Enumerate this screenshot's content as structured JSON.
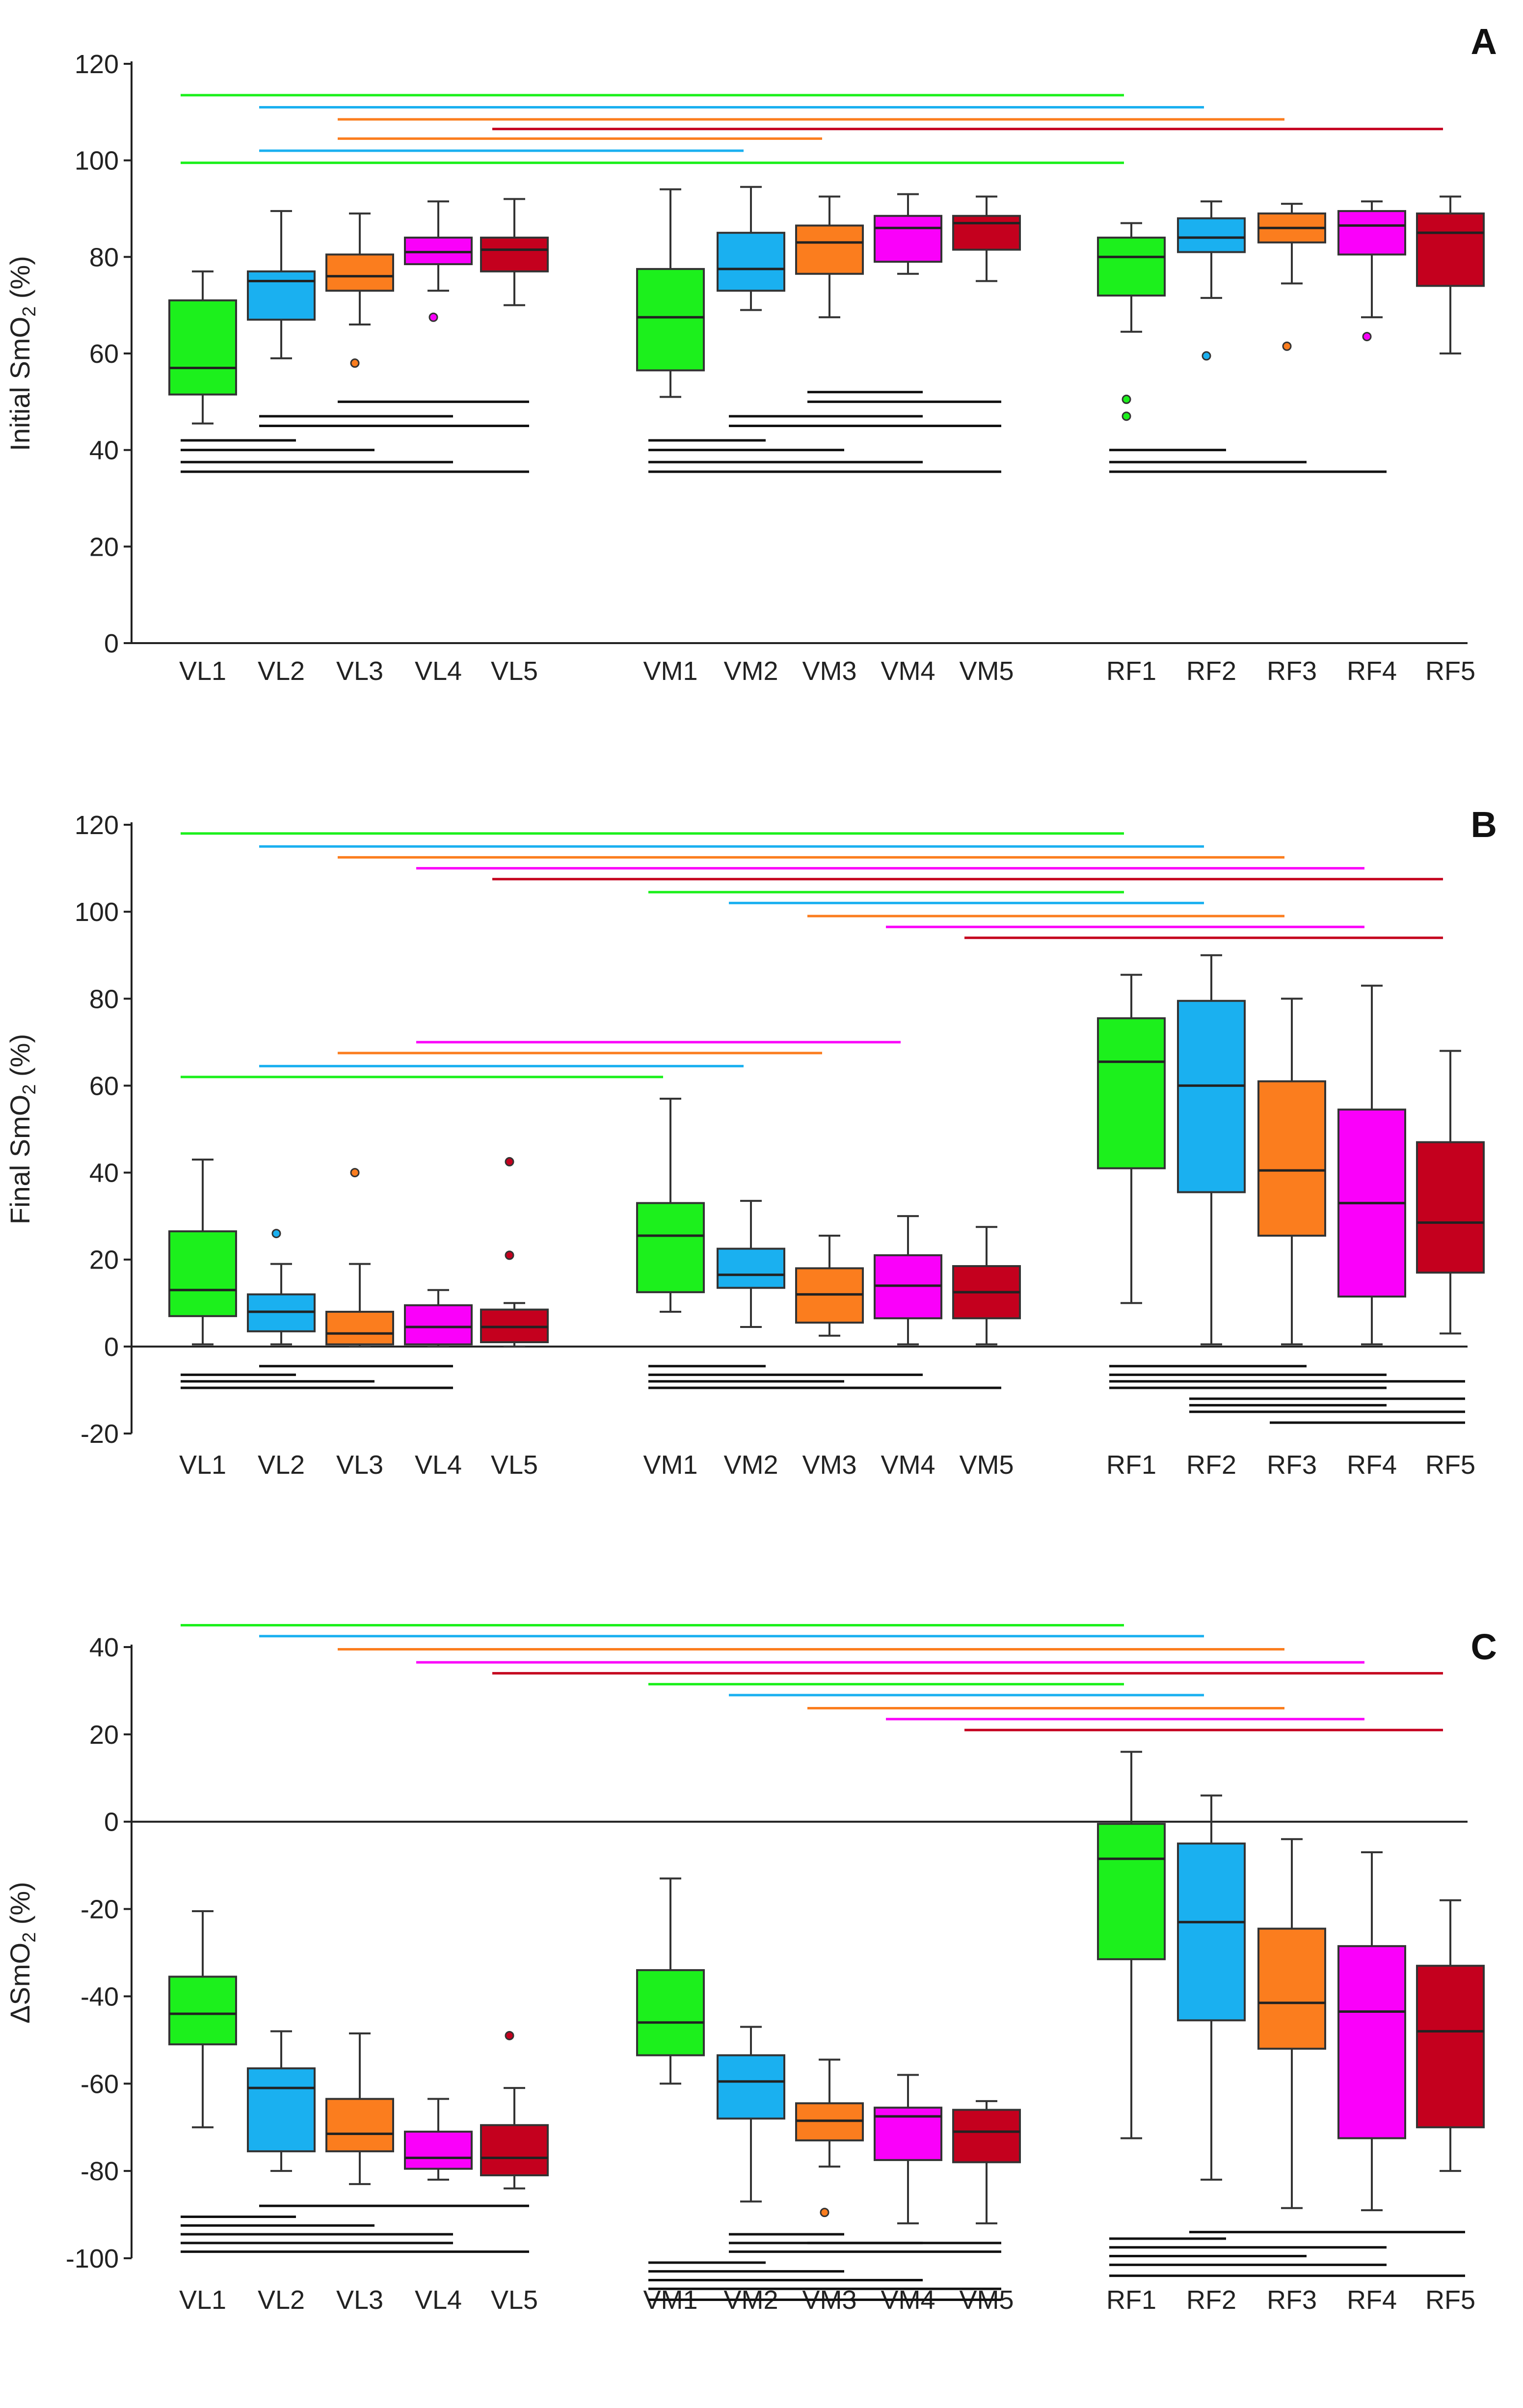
{
  "colors": {
    "1": "#1cf01c",
    "2": "#1ab0f0",
    "3": "#fb7d1e",
    "4": "#fa00fa",
    "5": "#c4001e"
  },
  "chart_data": [
    {
      "panel": "A",
      "type": "box",
      "ylabel_main": "Initial SmO",
      "ylabel_sub": "2",
      "ylabel_tail": " (%)",
      "ylim": [
        0,
        120
      ],
      "yticks": [
        0,
        20,
        40,
        60,
        80,
        100,
        120
      ],
      "zero_line": false,
      "categories": [
        "VL1",
        "VL2",
        "VL3",
        "VL4",
        "VL5",
        "VM1",
        "VM2",
        "VM3",
        "VM4",
        "VM5",
        "RF1",
        "RF2",
        "RF3",
        "RF4",
        "RF5"
      ],
      "boxes": [
        {
          "cat": "VL1",
          "wlo": 45.5,
          "q1": 51.5,
          "med": 57,
          "q3": 71,
          "whi": 77,
          "outliers": []
        },
        {
          "cat": "VL2",
          "wlo": 59,
          "q1": 67,
          "med": 75,
          "q3": 77,
          "whi": 89.5,
          "outliers": []
        },
        {
          "cat": "VL3",
          "wlo": 66,
          "q1": 73,
          "med": 76,
          "q3": 80.5,
          "whi": 89,
          "outliers": [
            58
          ]
        },
        {
          "cat": "VL4",
          "wlo": 73,
          "q1": 78.5,
          "med": 81,
          "q3": 84,
          "whi": 91.5,
          "outliers": [
            67.5
          ]
        },
        {
          "cat": "VL5",
          "wlo": 70,
          "q1": 77,
          "med": 81.5,
          "q3": 84,
          "whi": 92,
          "outliers": []
        },
        {
          "cat": "VM1",
          "wlo": 51,
          "q1": 56.5,
          "med": 67.5,
          "q3": 77.5,
          "whi": 94,
          "outliers": []
        },
        {
          "cat": "VM2",
          "wlo": 69,
          "q1": 73,
          "med": 77.5,
          "q3": 85,
          "whi": 94.5,
          "outliers": []
        },
        {
          "cat": "VM3",
          "wlo": 67.5,
          "q1": 76.5,
          "med": 83,
          "q3": 86.5,
          "whi": 92.5,
          "outliers": []
        },
        {
          "cat": "VM4",
          "wlo": 76.5,
          "q1": 79,
          "med": 86,
          "q3": 88.5,
          "whi": 93,
          "outliers": []
        },
        {
          "cat": "VM5",
          "wlo": 75,
          "q1": 81.5,
          "med": 87,
          "q3": 88.5,
          "whi": 92.5,
          "outliers": []
        },
        {
          "cat": "RF1",
          "wlo": 64.5,
          "q1": 72,
          "med": 80,
          "q3": 84,
          "whi": 87,
          "outliers": [
            47,
            50.5
          ]
        },
        {
          "cat": "RF2",
          "wlo": 71.5,
          "q1": 81,
          "med": 84,
          "q3": 88,
          "whi": 91.5,
          "outliers": [
            59.5
          ]
        },
        {
          "cat": "RF3",
          "wlo": 74.5,
          "q1": 83,
          "med": 86,
          "q3": 89,
          "whi": 91,
          "outliers": [
            61.5
          ]
        },
        {
          "cat": "RF4",
          "wlo": 67.5,
          "q1": 80.5,
          "med": 86.5,
          "q3": 89.5,
          "whi": 91.5,
          "outliers": [
            63.5
          ]
        },
        {
          "cat": "RF5",
          "wlo": 60,
          "q1": 74,
          "med": 85,
          "q3": 89,
          "whi": 92.5,
          "outliers": []
        }
      ],
      "sig_top": [
        {
          "from": "VL1",
          "to": "RF1",
          "y": 113.5,
          "c": "1"
        },
        {
          "from": "VL2",
          "to": "RF2",
          "y": 111,
          "c": "2"
        },
        {
          "from": "VL3",
          "to": "RF3",
          "y": 108.5,
          "c": "3"
        },
        {
          "from": "VL5",
          "to": "RF5",
          "y": 106.5,
          "c": "5"
        },
        {
          "from": "VL3",
          "to": "VM3",
          "y": 104.5,
          "c": "3"
        },
        {
          "from": "VL2",
          "to": "VM2",
          "y": 102,
          "c": "2"
        },
        {
          "from": "VL1",
          "to": "RF1",
          "y": 99.5,
          "c": "1"
        }
      ],
      "sig_bottom": [
        {
          "from": "VL3",
          "to": "VL5",
          "y": 50
        },
        {
          "from": "VL2",
          "to": "VL4",
          "y": 47
        },
        {
          "from": "VL2",
          "to": "VL5",
          "y": 45
        },
        {
          "from": "VL1",
          "to": "VL2",
          "y": 42
        },
        {
          "from": "VL1",
          "to": "VL3",
          "y": 40
        },
        {
          "from": "VL1",
          "to": "VL4",
          "y": 37.5
        },
        {
          "from": "VL1",
          "to": "VL5",
          "y": 35.5
        },
        {
          "from": "VM3",
          "to": "VM4",
          "y": 52
        },
        {
          "from": "VM3",
          "to": "VM5",
          "y": 50
        },
        {
          "from": "VM2",
          "to": "VM4",
          "y": 47
        },
        {
          "from": "VM2",
          "to": "VM5",
          "y": 45
        },
        {
          "from": "VM1",
          "to": "VM2",
          "y": 42
        },
        {
          "from": "VM1",
          "to": "VM3",
          "y": 40
        },
        {
          "from": "VM1",
          "to": "VM4",
          "y": 37.5
        },
        {
          "from": "VM1",
          "to": "VM5",
          "y": 35.5
        },
        {
          "from": "RF1",
          "to": "RF2",
          "y": 40
        },
        {
          "from": "RF1",
          "to": "RF3",
          "y": 37.5
        },
        {
          "from": "RF1",
          "to": "RF4",
          "y": 35.5
        }
      ]
    },
    {
      "panel": "B",
      "type": "box",
      "ylabel_main": "Final SmO",
      "ylabel_sub": "2",
      "ylabel_tail": " (%)",
      "ylim": [
        -20,
        120
      ],
      "yticks": [
        -20,
        0,
        20,
        40,
        60,
        80,
        100,
        120
      ],
      "zero_line": true,
      "categories": [
        "VL1",
        "VL2",
        "VL3",
        "VL4",
        "VL5",
        "VM1",
        "VM2",
        "VM3",
        "VM4",
        "VM5",
        "RF1",
        "RF2",
        "RF3",
        "RF4",
        "RF5"
      ],
      "boxes": [
        {
          "cat": "VL1",
          "wlo": 0.5,
          "q1": 7,
          "med": 13,
          "q3": 26.5,
          "whi": 43,
          "outliers": []
        },
        {
          "cat": "VL2",
          "wlo": 0.5,
          "q1": 3.5,
          "med": 8,
          "q3": 12,
          "whi": 19,
          "outliers": [
            26
          ]
        },
        {
          "cat": "VL3",
          "wlo": 0,
          "q1": 0.5,
          "med": 3,
          "q3": 8,
          "whi": 19,
          "outliers": [
            40
          ]
        },
        {
          "cat": "VL4",
          "wlo": 0,
          "q1": 0.5,
          "med": 4.5,
          "q3": 9.5,
          "whi": 13,
          "outliers": []
        },
        {
          "cat": "VL5",
          "wlo": 0,
          "q1": 1,
          "med": 4.5,
          "q3": 8.5,
          "whi": 10,
          "outliers": [
            21,
            42.5
          ]
        },
        {
          "cat": "VM1",
          "wlo": 8,
          "q1": 12.5,
          "med": 25.5,
          "q3": 33,
          "whi": 57,
          "outliers": []
        },
        {
          "cat": "VM2",
          "wlo": 4.5,
          "q1": 13.5,
          "med": 16.5,
          "q3": 22.5,
          "whi": 33.5,
          "outliers": []
        },
        {
          "cat": "VM3",
          "wlo": 2.5,
          "q1": 5.5,
          "med": 12,
          "q3": 18,
          "whi": 25.5,
          "outliers": []
        },
        {
          "cat": "VM4",
          "wlo": 0.5,
          "q1": 6.5,
          "med": 14,
          "q3": 21,
          "whi": 30,
          "outliers": []
        },
        {
          "cat": "VM5",
          "wlo": 0.5,
          "q1": 6.5,
          "med": 12.5,
          "q3": 18.5,
          "whi": 27.5,
          "outliers": []
        },
        {
          "cat": "RF1",
          "wlo": 10,
          "q1": 41,
          "med": 65.5,
          "q3": 75.5,
          "whi": 85.5,
          "outliers": []
        },
        {
          "cat": "RF2",
          "wlo": 0.5,
          "q1": 35.5,
          "med": 60,
          "q3": 79.5,
          "whi": 90,
          "outliers": []
        },
        {
          "cat": "RF3",
          "wlo": 0.5,
          "q1": 25.5,
          "med": 40.5,
          "q3": 61,
          "whi": 80,
          "outliers": []
        },
        {
          "cat": "RF4",
          "wlo": 0.5,
          "q1": 11.5,
          "med": 33,
          "q3": 54.5,
          "whi": 83,
          "outliers": []
        },
        {
          "cat": "RF5",
          "wlo": 3,
          "q1": 17,
          "med": 28.5,
          "q3": 47,
          "whi": 68,
          "outliers": []
        }
      ],
      "sig_top": [
        {
          "from": "VL1",
          "to": "RF1",
          "y": 118,
          "c": "1"
        },
        {
          "from": "VL2",
          "to": "RF2",
          "y": 115,
          "c": "2"
        },
        {
          "from": "VL3",
          "to": "RF3",
          "y": 112.5,
          "c": "3"
        },
        {
          "from": "VL4",
          "to": "RF4",
          "y": 110,
          "c": "4"
        },
        {
          "from": "VL5",
          "to": "RF5",
          "y": 107.5,
          "c": "5"
        },
        {
          "from": "VM1",
          "to": "RF1",
          "y": 104.5,
          "c": "1"
        },
        {
          "from": "VM2",
          "to": "RF2",
          "y": 102,
          "c": "2"
        },
        {
          "from": "VM3",
          "to": "RF3",
          "y": 99,
          "c": "3"
        },
        {
          "from": "VM4",
          "to": "RF4",
          "y": 96.5,
          "c": "4"
        },
        {
          "from": "VM5",
          "to": "RF5",
          "y": 94,
          "c": "5"
        },
        {
          "from": "VL4",
          "to": "VM4",
          "y": 70,
          "c": "4"
        },
        {
          "from": "VL3",
          "to": "VM3",
          "y": 67.5,
          "c": "3"
        },
        {
          "from": "VL2",
          "to": "VM2",
          "y": 64.5,
          "c": "2"
        },
        {
          "from": "VL1",
          "to": "VM1",
          "y": 62,
          "c": "1"
        }
      ],
      "sig_bottom": [
        {
          "from": "VL1",
          "to": "VL2",
          "y": -6.5
        },
        {
          "from": "VL2",
          "to": "VL4",
          "y": -4.5
        },
        {
          "from": "VL1",
          "to": "VL3",
          "y": -8
        },
        {
          "from": "VL1",
          "to": "VL4",
          "y": -9.5
        },
        {
          "from": "VM1",
          "to": "VM2",
          "y": -4.5
        },
        {
          "from": "VM1",
          "to": "VM4",
          "y": -6.5
        },
        {
          "from": "VM1",
          "to": "VM3",
          "y": -8
        },
        {
          "from": "VM1",
          "to": "VM5",
          "y": -9.5
        },
        {
          "from": "RF1",
          "to": "RF3",
          "y": -4.5
        },
        {
          "from": "RF1",
          "to": "RF4",
          "y": -6.5
        },
        {
          "from": "RF1",
          "to": "RF5",
          "y": -8
        },
        {
          "from": "RF1",
          "to": "RF4",
          "y": -9.5
        },
        {
          "from": "RF2",
          "to": "RF5",
          "y": -12
        },
        {
          "from": "RF2",
          "to": "RF4",
          "y": -13.5
        },
        {
          "from": "RF2",
          "to": "RF5",
          "y": -15
        },
        {
          "from": "RF3",
          "to": "RF5",
          "y": -17.5
        }
      ]
    },
    {
      "panel": "C",
      "type": "box",
      "ylabel_main": "ΔSmO",
      "ylabel_sub": "2",
      "ylabel_tail": " (%)",
      "ylim": [
        -100,
        40
      ],
      "yticks": [
        -100,
        -80,
        -60,
        -40,
        -20,
        0,
        20,
        40
      ],
      "zero_line": true,
      "categories": [
        "VL1",
        "VL2",
        "VL3",
        "VL4",
        "VL5",
        "VM1",
        "VM2",
        "VM3",
        "VM4",
        "VM5",
        "RF1",
        "RF2",
        "RF3",
        "RF4",
        "RF5"
      ],
      "boxes": [
        {
          "cat": "VL1",
          "wlo": -70,
          "q1": -51,
          "med": -44,
          "q3": -35.5,
          "whi": -20.5,
          "outliers": []
        },
        {
          "cat": "VL2",
          "wlo": -80,
          "q1": -75.5,
          "med": -61,
          "q3": -56.5,
          "whi": -48,
          "outliers": []
        },
        {
          "cat": "VL3",
          "wlo": -83,
          "q1": -75.5,
          "med": -71.5,
          "q3": -63.5,
          "whi": -48.5,
          "outliers": []
        },
        {
          "cat": "VL4",
          "wlo": -82,
          "q1": -79.5,
          "med": -77,
          "q3": -71,
          "whi": -63.5,
          "outliers": []
        },
        {
          "cat": "VL5",
          "wlo": -84,
          "q1": -81,
          "med": -77,
          "q3": -69.5,
          "whi": -61,
          "outliers": [
            -49
          ]
        },
        {
          "cat": "VM1",
          "wlo": -60,
          "q1": -53.5,
          "med": -46,
          "q3": -34,
          "whi": -13,
          "outliers": []
        },
        {
          "cat": "VM2",
          "wlo": -87,
          "q1": -68,
          "med": -59.5,
          "q3": -53.5,
          "whi": -47,
          "outliers": []
        },
        {
          "cat": "VM3",
          "wlo": -79,
          "q1": -73,
          "med": -68.5,
          "q3": -64.5,
          "whi": -54.5,
          "outliers": [
            -89.5
          ]
        },
        {
          "cat": "VM4",
          "wlo": -92,
          "q1": -77.5,
          "med": -67.5,
          "q3": -65.5,
          "whi": -58,
          "outliers": []
        },
        {
          "cat": "VM5",
          "wlo": -92,
          "q1": -78,
          "med": -71,
          "q3": -66,
          "whi": -64,
          "outliers": []
        },
        {
          "cat": "RF1",
          "wlo": -72.5,
          "q1": -31.5,
          "med": -8.5,
          "q3": -0.5,
          "whi": 16,
          "outliers": []
        },
        {
          "cat": "RF2",
          "wlo": -82,
          "q1": -45.5,
          "med": -23,
          "q3": -5,
          "whi": 6,
          "outliers": []
        },
        {
          "cat": "RF3",
          "wlo": -88.5,
          "q1": -52,
          "med": -41.5,
          "q3": -24.5,
          "whi": -4,
          "outliers": []
        },
        {
          "cat": "RF4",
          "wlo": -89,
          "q1": -72.5,
          "med": -43.5,
          "q3": -28.5,
          "whi": -7,
          "outliers": []
        },
        {
          "cat": "RF5",
          "wlo": -80,
          "q1": -70,
          "med": -48,
          "q3": -33,
          "whi": -18,
          "outliers": []
        }
      ],
      "sig_top": [
        {
          "from": "VL1",
          "to": "RF1",
          "y": 45,
          "c": "1"
        },
        {
          "from": "VL2",
          "to": "RF2",
          "y": 42.5,
          "c": "2"
        },
        {
          "from": "VL3",
          "to": "RF3",
          "y": 39.5,
          "c": "3"
        },
        {
          "from": "VL4",
          "to": "RF4",
          "y": 36.5,
          "c": "4"
        },
        {
          "from": "VL5",
          "to": "RF5",
          "y": 34,
          "c": "5"
        },
        {
          "from": "VM1",
          "to": "RF1",
          "y": 31.5,
          "c": "1"
        },
        {
          "from": "VM2",
          "to": "RF2",
          "y": 29,
          "c": "2"
        },
        {
          "from": "VM3",
          "to": "RF3",
          "y": 26,
          "c": "3"
        },
        {
          "from": "VM4",
          "to": "RF4",
          "y": 23.5,
          "c": "4"
        },
        {
          "from": "VM5",
          "to": "RF5",
          "y": 21,
          "c": "5"
        }
      ],
      "sig_bottom": [
        {
          "from": "VL2",
          "to": "VL5",
          "y": -88
        },
        {
          "from": "VL1",
          "to": "VL2",
          "y": -90.5
        },
        {
          "from": "VL1",
          "to": "VL3",
          "y": -92.5
        },
        {
          "from": "VL1",
          "to": "VL4",
          "y": -94.5
        },
        {
          "from": "VL1",
          "to": "VL4",
          "y": -96.5
        },
        {
          "from": "VL1",
          "to": "VL5",
          "y": -98.5
        },
        {
          "from": "VM2",
          "to": "VM3",
          "y": -94.5
        },
        {
          "from": "VM3",
          "to": "VM5",
          "y": -96.5
        },
        {
          "from": "VM2",
          "to": "VM4",
          "y": -96.5
        },
        {
          "from": "VM2",
          "to": "VM5",
          "y": -98.5
        },
        {
          "from": "VM1",
          "to": "VM2",
          "y": -101
        },
        {
          "from": "VM1",
          "to": "VM3",
          "y": -103
        },
        {
          "from": "VM1",
          "to": "VM4",
          "y": -105
        },
        {
          "from": "VM1",
          "to": "VM5",
          "y": -107
        },
        {
          "from": "VM1",
          "to": "VM5",
          "y": -109.5
        },
        {
          "from": "RF2",
          "to": "RF5",
          "y": -94
        },
        {
          "from": "RF1",
          "to": "RF2",
          "y": -95.5
        },
        {
          "from": "RF1",
          "to": "RF4",
          "y": -97.5
        },
        {
          "from": "RF1",
          "to": "RF3",
          "y": -99.5
        },
        {
          "from": "RF1",
          "to": "RF4",
          "y": -101.5
        },
        {
          "from": "RF1",
          "to": "RF5",
          "y": -104
        }
      ]
    }
  ]
}
